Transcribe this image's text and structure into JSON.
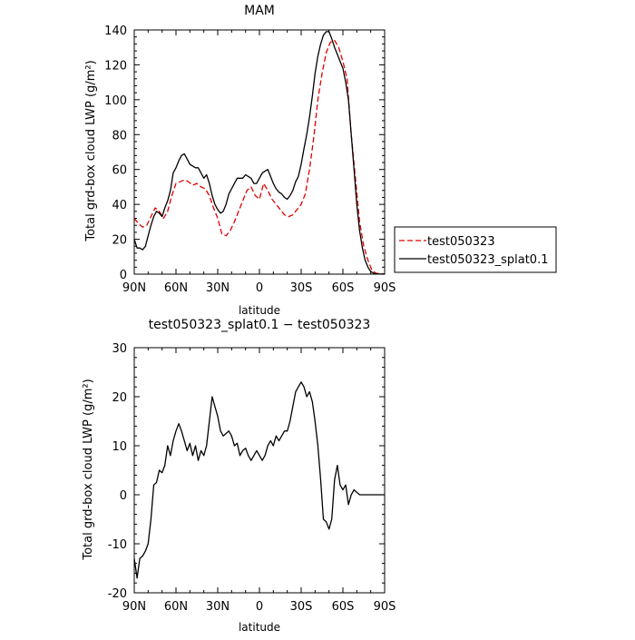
{
  "chart_data": [
    {
      "type": "line",
      "title": "MAM",
      "xlabel": "latitude",
      "ylabel": "Total grd-box cloud LWP (g/m²)",
      "xlim": [
        90,
        -90
      ],
      "ylim": [
        0,
        140
      ],
      "x_ticks": [
        {
          "value": 90,
          "label": "90N"
        },
        {
          "value": 60,
          "label": "60N"
        },
        {
          "value": 30,
          "label": "30N"
        },
        {
          "value": 0,
          "label": "0"
        },
        {
          "value": -30,
          "label": "30S"
        },
        {
          "value": -60,
          "label": "60S"
        },
        {
          "value": -90,
          "label": "90S"
        }
      ],
      "y_ticks": [
        0,
        20,
        40,
        60,
        80,
        100,
        120,
        140
      ],
      "legend_position": "outside-right",
      "series": [
        {
          "name": "test050323",
          "color": "#e00000",
          "dash": "dashed",
          "points": [
            [
              90,
              32
            ],
            [
              87,
              29
            ],
            [
              84,
              27
            ],
            [
              81,
              28
            ],
            [
              78,
              33
            ],
            [
              75,
              38
            ],
            [
              72,
              36
            ],
            [
              69,
              32
            ],
            [
              66,
              36
            ],
            [
              63,
              45
            ],
            [
              60,
              52
            ],
            [
              57,
              53
            ],
            [
              54,
              54
            ],
            [
              51,
              53
            ],
            [
              48,
              51
            ],
            [
              45,
              52
            ],
            [
              42,
              50
            ],
            [
              39,
              49
            ],
            [
              36,
              45
            ],
            [
              33,
              38
            ],
            [
              30,
              32
            ],
            [
              27,
              23
            ],
            [
              24,
              22
            ],
            [
              21,
              25
            ],
            [
              18,
              30
            ],
            [
              15,
              36
            ],
            [
              12,
              42
            ],
            [
              9,
              48
            ],
            [
              6,
              50
            ],
            [
              3,
              45
            ],
            [
              0,
              43
            ],
            [
              -3,
              52
            ],
            [
              -6,
              48
            ],
            [
              -9,
              43
            ],
            [
              -12,
              40
            ],
            [
              -15,
              37
            ],
            [
              -18,
              34
            ],
            [
              -21,
              33
            ],
            [
              -24,
              34
            ],
            [
              -27,
              37
            ],
            [
              -30,
              40
            ],
            [
              -33,
              46
            ],
            [
              -36,
              60
            ],
            [
              -39,
              78
            ],
            [
              -42,
              100
            ],
            [
              -45,
              115
            ],
            [
              -48,
              127
            ],
            [
              -51,
              133
            ],
            [
              -54,
              134
            ],
            [
              -57,
              130
            ],
            [
              -60,
              122
            ],
            [
              -63,
              112
            ],
            [
              -66,
              80
            ],
            [
              -69,
              55
            ],
            [
              -72,
              30
            ],
            [
              -75,
              16
            ],
            [
              -78,
              8
            ],
            [
              -81,
              2
            ],
            [
              -84,
              0.5
            ],
            [
              -87,
              0.2
            ],
            [
              -90,
              0.1
            ]
          ]
        },
        {
          "name": "test050323_splat0.1",
          "color": "#000000",
          "dash": "solid",
          "points": [
            [
              90,
              20
            ],
            [
              88,
              15
            ],
            [
              86,
              15
            ],
            [
              84,
              14
            ],
            [
              82,
              16
            ],
            [
              80,
              22
            ],
            [
              78,
              28
            ],
            [
              76,
              33
            ],
            [
              74,
              36
            ],
            [
              72,
              35
            ],
            [
              70,
              33
            ],
            [
              68,
              38
            ],
            [
              66,
              42
            ],
            [
              64,
              48
            ],
            [
              62,
              58
            ],
            [
              60,
              61
            ],
            [
              58,
              65
            ],
            [
              56,
              68
            ],
            [
              54,
              69
            ],
            [
              52,
              66
            ],
            [
              50,
              63
            ],
            [
              48,
              62
            ],
            [
              46,
              61
            ],
            [
              44,
              61
            ],
            [
              42,
              58
            ],
            [
              40,
              55
            ],
            [
              38,
              57
            ],
            [
              36,
              52
            ],
            [
              34,
              45
            ],
            [
              32,
              40
            ],
            [
              30,
              37
            ],
            [
              28,
              35
            ],
            [
              26,
              36
            ],
            [
              24,
              40
            ],
            [
              22,
              46
            ],
            [
              20,
              49
            ],
            [
              18,
              52
            ],
            [
              16,
              55
            ],
            [
              14,
              55
            ],
            [
              12,
              55
            ],
            [
              10,
              57
            ],
            [
              8,
              56
            ],
            [
              6,
              55
            ],
            [
              4,
              52
            ],
            [
              2,
              52
            ],
            [
              0,
              55
            ],
            [
              -2,
              58
            ],
            [
              -4,
              59
            ],
            [
              -6,
              60
            ],
            [
              -8,
              56
            ],
            [
              -10,
              52
            ],
            [
              -12,
              49
            ],
            [
              -14,
              47
            ],
            [
              -16,
              46
            ],
            [
              -18,
              44
            ],
            [
              -20,
              43
            ],
            [
              -22,
              45
            ],
            [
              -24,
              48
            ],
            [
              -26,
              53
            ],
            [
              -28,
              56
            ],
            [
              -30,
              63
            ],
            [
              -32,
              72
            ],
            [
              -34,
              80
            ],
            [
              -36,
              90
            ],
            [
              -38,
              102
            ],
            [
              -40,
              115
            ],
            [
              -42,
              125
            ],
            [
              -44,
              132
            ],
            [
              -46,
              137
            ],
            [
              -48,
              139
            ],
            [
              -50,
              139
            ],
            [
              -52,
              135
            ],
            [
              -54,
              130
            ],
            [
              -56,
              126
            ],
            [
              -58,
              122
            ],
            [
              -60,
              118
            ],
            [
              -62,
              110
            ],
            [
              -64,
              100
            ],
            [
              -66,
              80
            ],
            [
              -68,
              60
            ],
            [
              -70,
              40
            ],
            [
              -72,
              25
            ],
            [
              -74,
              15
            ],
            [
              -76,
              8
            ],
            [
              -78,
              4
            ],
            [
              -80,
              1.5
            ],
            [
              -82,
              0.5
            ],
            [
              -84,
              0.2
            ],
            [
              -86,
              0.1
            ],
            [
              -90,
              0
            ]
          ]
        }
      ]
    },
    {
      "type": "line",
      "title": "test050323_splat0.1 − test050323",
      "xlabel": "latitude",
      "ylabel": "Total grd-box cloud LWP (g/m²)",
      "xlim": [
        90,
        -90
      ],
      "ylim": [
        -20,
        30
      ],
      "x_ticks": [
        {
          "value": 90,
          "label": "90N"
        },
        {
          "value": 60,
          "label": "60N"
        },
        {
          "value": 30,
          "label": "30N"
        },
        {
          "value": 0,
          "label": "0"
        },
        {
          "value": -30,
          "label": "30S"
        },
        {
          "value": -60,
          "label": "60S"
        },
        {
          "value": -90,
          "label": "90S"
        }
      ],
      "y_ticks": [
        -20,
        -10,
        0,
        10,
        20,
        30
      ],
      "series": [
        {
          "color": "#000000",
          "dash": "solid",
          "points": [
            [
              90,
              -13
            ],
            [
              88,
              -17
            ],
            [
              86,
              -13
            ],
            [
              84,
              -12.5
            ],
            [
              82,
              -11.5
            ],
            [
              80,
              -10
            ],
            [
              78,
              -5
            ],
            [
              76,
              2
            ],
            [
              74,
              2.5
            ],
            [
              72,
              5
            ],
            [
              70,
              4.5
            ],
            [
              68,
              6
            ],
            [
              66,
              10
            ],
            [
              64,
              8
            ],
            [
              62,
              11
            ],
            [
              60,
              13
            ],
            [
              58,
              14.5
            ],
            [
              56,
              13
            ],
            [
              54,
              11
            ],
            [
              52,
              9
            ],
            [
              50,
              10.5
            ],
            [
              48,
              8
            ],
            [
              46,
              10
            ],
            [
              44,
              7
            ],
            [
              42,
              9
            ],
            [
              40,
              8
            ],
            [
              38,
              10
            ],
            [
              36,
              15
            ],
            [
              34,
              20
            ],
            [
              32,
              18
            ],
            [
              30,
              16
            ],
            [
              28,
              13
            ],
            [
              26,
              12
            ],
            [
              24,
              12.5
            ],
            [
              22,
              13
            ],
            [
              20,
              12
            ],
            [
              18,
              10
            ],
            [
              16,
              10.5
            ],
            [
              14,
              8
            ],
            [
              12,
              9
            ],
            [
              10,
              9.5
            ],
            [
              8,
              8
            ],
            [
              6,
              7
            ],
            [
              4,
              8
            ],
            [
              2,
              9
            ],
            [
              0,
              8
            ],
            [
              -2,
              7
            ],
            [
              -4,
              8
            ],
            [
              -6,
              10
            ],
            [
              -8,
              11
            ],
            [
              -10,
              10
            ],
            [
              -12,
              12
            ],
            [
              -14,
              11
            ],
            [
              -16,
              12
            ],
            [
              -18,
              13
            ],
            [
              -20,
              13
            ],
            [
              -22,
              15
            ],
            [
              -24,
              18
            ],
            [
              -26,
              21
            ],
            [
              -28,
              22
            ],
            [
              -30,
              23
            ],
            [
              -32,
              22
            ],
            [
              -34,
              20
            ],
            [
              -36,
              21
            ],
            [
              -38,
              19
            ],
            [
              -40,
              15
            ],
            [
              -42,
              10
            ],
            [
              -44,
              3
            ],
            [
              -46,
              -5
            ],
            [
              -48,
              -5.5
            ],
            [
              -50,
              -7
            ],
            [
              -52,
              -5
            ],
            [
              -54,
              3
            ],
            [
              -56,
              6
            ],
            [
              -58,
              2
            ],
            [
              -60,
              1
            ],
            [
              -62,
              2
            ],
            [
              -64,
              -2
            ],
            [
              -66,
              0
            ],
            [
              -68,
              1
            ],
            [
              -70,
              0.5
            ],
            [
              -72,
              0
            ],
            [
              -74,
              0
            ],
            [
              -76,
              0
            ],
            [
              -90,
              0
            ]
          ]
        }
      ]
    }
  ],
  "legend": {
    "items": [
      {
        "label": "test050323",
        "color": "#e00000",
        "dash": "dashed"
      },
      {
        "label": "test050323_splat0.1",
        "color": "#000000",
        "dash": "solid"
      }
    ]
  }
}
